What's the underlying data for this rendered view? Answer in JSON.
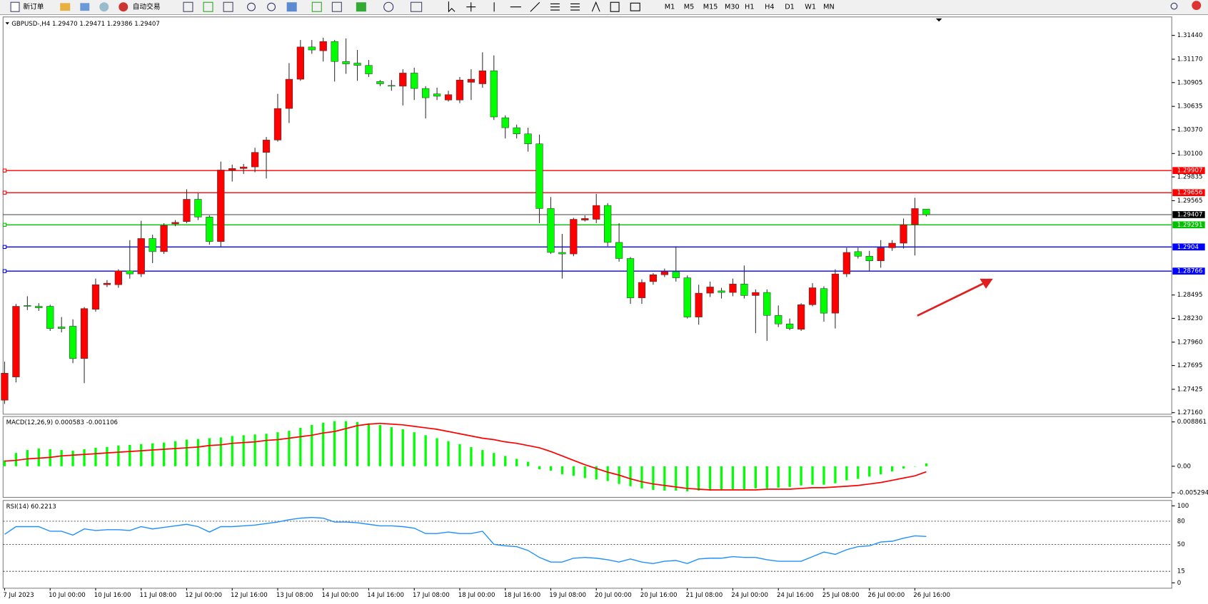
{
  "toolbar": {
    "new_order": "新订单",
    "auto_trading": "自动交易",
    "timeframes": [
      "M1",
      "M5",
      "M15",
      "M30",
      "H1",
      "H4",
      "D1",
      "W1",
      "MN"
    ]
  },
  "chart_data": [
    {
      "type": "candlestick",
      "title": "GBPUSD-,H4 1.29470 1.29471 1.29386 1.29407",
      "x": [
        "7 Jul 2023",
        null,
        null,
        null,
        "10 Jul 00:00",
        null,
        null,
        null,
        "10 Jul 16:00",
        null,
        null,
        null,
        "11 Jul 08:00",
        null,
        null,
        null,
        "12 Jul 00:00",
        null,
        null,
        null,
        "12 Jul 16:00",
        null,
        null,
        null,
        "13 Jul 08:00",
        null,
        null,
        null,
        "14 Jul 00:00",
        null,
        null,
        null,
        "14 Jul 16:00",
        null,
        null,
        null,
        "17 Jul 08:00",
        null,
        null,
        null,
        "18 Jul 00:00",
        null,
        null,
        null,
        "18 Jul 16:00",
        null,
        null,
        null,
        "19 Jul 08:00",
        null,
        null,
        null,
        "20 Jul 00:00",
        null,
        null,
        null,
        "20 Jul 16:00",
        null,
        null,
        null,
        "21 Jul 08:00",
        null,
        null,
        null,
        "24 Jul 00:00",
        null,
        null,
        null,
        "24 Jul 16:00",
        null,
        null,
        null,
        "25 Jul 08:00",
        null,
        null,
        null,
        "26 Jul 00:00",
        null,
        null,
        null,
        "26 Jul 16:00",
        null
      ],
      "candles": [
        [
          1.27302,
          1.27739,
          1.27259,
          1.27608
        ],
        [
          1.27565,
          1.28394,
          1.27503,
          1.28367
        ],
        [
          1.28376,
          1.28481,
          1.28324,
          1.28367
        ],
        [
          1.28367,
          1.28402,
          1.28315,
          1.2835
        ],
        [
          1.28367,
          1.28385,
          1.28088,
          1.28115
        ],
        [
          1.28132,
          1.28245,
          1.28071,
          1.28115
        ],
        [
          1.28141,
          1.28219,
          1.27722,
          1.27774
        ],
        [
          1.27774,
          1.28359,
          1.27495,
          1.28341
        ],
        [
          1.28333,
          1.28681,
          1.28306,
          1.28612
        ],
        [
          1.28612,
          1.28664,
          1.28586,
          1.28629
        ],
        [
          1.28612,
          1.28787,
          1.28577,
          1.28769
        ],
        [
          1.28769,
          1.29118,
          1.28681,
          1.28734
        ],
        [
          1.28734,
          1.29337,
          1.28699,
          1.29136
        ],
        [
          1.29136,
          1.29179,
          1.28857,
          1.28987
        ],
        [
          1.28987,
          1.2931,
          1.28961,
          1.29284
        ],
        [
          1.29302,
          1.29345,
          1.29275,
          1.29319
        ],
        [
          1.29328,
          1.29694,
          1.2931,
          1.29581
        ],
        [
          1.29581,
          1.29651,
          1.29345,
          1.2938
        ],
        [
          1.2938,
          1.29398,
          1.29066,
          1.29101
        ],
        [
          1.29101,
          1.30009,
          1.2904,
          1.29913
        ],
        [
          1.29913,
          1.29974,
          1.29782,
          1.2993
        ],
        [
          1.2993,
          1.29982,
          1.29869,
          1.29948
        ],
        [
          1.29948,
          1.30166,
          1.29887,
          1.30113
        ],
        [
          1.30113,
          1.30288,
          1.29817,
          1.30253
        ],
        [
          1.30253,
          1.30777,
          1.30236,
          1.30611
        ],
        [
          1.30611,
          1.31126,
          1.30446,
          1.30943
        ],
        [
          1.30943,
          1.31388,
          1.30925,
          1.31309
        ],
        [
          1.31309,
          1.31388,
          1.31231,
          1.31275
        ],
        [
          1.31266,
          1.31414,
          1.31144,
          1.31371
        ],
        [
          1.31371,
          1.31388,
          1.30917,
          1.31144
        ],
        [
          1.31144,
          1.31406,
          1.31004,
          1.31117
        ],
        [
          1.31126,
          1.31275,
          1.30925,
          1.311
        ],
        [
          1.311,
          1.31161,
          1.30969,
          1.31004
        ],
        [
          1.30917,
          1.30934,
          1.30864,
          1.30891
        ],
        [
          1.30873,
          1.30934,
          1.30812,
          1.30864
        ],
        [
          1.30864,
          1.31056,
          1.30646,
          1.31013
        ],
        [
          1.31013,
          1.31074,
          1.30707,
          1.30838
        ],
        [
          1.30838,
          1.30864,
          1.30498,
          1.30733
        ],
        [
          1.30777,
          1.30847,
          1.30707,
          1.3075
        ],
        [
          1.30707,
          1.30812,
          1.3069,
          1.30768
        ],
        [
          1.30707,
          1.30969,
          1.30672,
          1.30934
        ],
        [
          1.30908,
          1.31056,
          1.30707,
          1.30943
        ],
        [
          1.30891,
          1.31248,
          1.30847,
          1.31039
        ],
        [
          1.31039,
          1.31213,
          1.30481,
          1.30515
        ],
        [
          1.30506,
          1.30533,
          1.30271,
          1.30393
        ],
        [
          1.30393,
          1.30428,
          1.30271,
          1.30323
        ],
        [
          1.30323,
          1.30393,
          1.30122,
          1.3021
        ],
        [
          1.3021,
          1.30315,
          1.2931,
          1.29476
        ],
        [
          1.29476,
          1.29607,
          1.28961,
          1.28978
        ],
        [
          1.28978,
          1.29188,
          1.28681,
          1.28961
        ],
        [
          1.28961,
          1.29371,
          1.28935,
          1.29354
        ],
        [
          1.29345,
          1.29398,
          1.29328,
          1.29363
        ],
        [
          1.29354,
          1.29642,
          1.2931,
          1.29511
        ],
        [
          1.29511,
          1.29537,
          1.29048,
          1.29092
        ],
        [
          1.29092,
          1.2931,
          1.28874,
          1.28909
        ],
        [
          1.28909,
          1.28926,
          1.28394,
          1.28463
        ],
        [
          1.28463,
          1.28673,
          1.28394,
          1.28638
        ],
        [
          1.28647,
          1.28743,
          1.28612,
          1.28725
        ],
        [
          1.28725,
          1.28795,
          1.28699,
          1.2876
        ],
        [
          1.2876,
          1.29048,
          1.28647,
          1.2869
        ],
        [
          1.2869,
          1.28717,
          1.28228,
          1.28245
        ],
        [
          1.28245,
          1.28612,
          1.28158,
          1.28516
        ],
        [
          1.28516,
          1.28647,
          1.28472,
          1.28586
        ],
        [
          1.28542,
          1.28577,
          1.28455,
          1.28524
        ],
        [
          1.28524,
          1.28681,
          1.28481,
          1.2862
        ],
        [
          1.2862,
          1.2883,
          1.28455,
          1.28489
        ],
        [
          1.28489,
          1.28559,
          1.28062,
          1.28524
        ],
        [
          1.28524,
          1.28559,
          1.27975,
          1.28263
        ],
        [
          1.28263,
          1.28376,
          1.28132,
          1.28167
        ],
        [
          1.28167,
          1.28228,
          1.28097,
          1.28115
        ],
        [
          1.28106,
          1.28402,
          1.28088,
          1.28385
        ],
        [
          1.28385,
          1.28629,
          1.28367,
          1.28577
        ],
        [
          1.28568,
          1.28594,
          1.28193,
          1.28289
        ],
        [
          1.28289,
          1.28787,
          1.28115,
          1.28734
        ],
        [
          1.28734,
          1.29031,
          1.28699,
          1.28978
        ],
        [
          1.28987,
          1.29031,
          1.28909,
          1.28935
        ],
        [
          1.28935,
          1.28996,
          1.2876,
          1.28883
        ],
        [
          1.28883,
          1.29118,
          1.28804,
          1.29031
        ],
        [
          1.29031,
          1.29118,
          1.28996,
          1.29083
        ],
        [
          1.29083,
          1.29363,
          1.29022,
          1.29293
        ],
        [
          1.29293,
          1.29598,
          1.28944,
          1.29476
        ],
        [
          1.2947,
          1.29471,
          1.29386,
          1.29407
        ]
      ],
      "up_color": "#ff0000",
      "down_color": "#00ff00",
      "ylim": [
        1.2716,
        1.3144
      ],
      "yticks": [
        {
          "value": 1.3144,
          "label": "1.31440"
        },
        {
          "value": 1.3117,
          "label": "1.31170"
        },
        1.30905,
        1.30635,
        {
          "value": 1.3037,
          "label": "1.30370"
        },
        {
          "value": 1.301,
          "label": "1.30100"
        },
        1.29835,
        1.29565,
        1.28495,
        {
          "value": 1.2823,
          "label": "1.28230"
        },
        {
          "value": 1.2796,
          "label": "1.27960"
        },
        1.27695,
        1.27425,
        {
          "value": 1.2716,
          "label": "1.27160"
        }
      ],
      "levels": [
        {
          "value": 1.29907,
          "color": "#ff0000"
        },
        {
          "value": 1.29656,
          "color": "#ff0000"
        },
        {
          "value": 1.29291,
          "color": "#00c000"
        },
        {
          "value": 1.2904,
          "color": "#0000ff"
        },
        {
          "value": 1.28766,
          "color": "#0000ff"
        }
      ],
      "current_price": 1.29407,
      "current_color": "#000000"
    },
    {
      "type": "macd",
      "title": "MACD(12,26,9) 0.000583 -0.001106",
      "series": [
        {
          "style": "histogram",
          "color": "#00ff00",
          "values": [
            0.00118,
            0.00266,
            0.00325,
            0.00354,
            0.0034,
            0.00325,
            0.0031,
            0.0034,
            0.00369,
            0.00384,
            0.00414,
            0.00428,
            0.00443,
            0.00458,
            0.00473,
            0.00502,
            0.00532,
            0.00546,
            0.00561,
            0.00576,
            0.00605,
            0.0062,
            0.00635,
            0.0065,
            0.00679,
            0.00709,
            0.00768,
            0.00827,
            0.00871,
            0.00901,
            0.00901,
            0.00886,
            0.00857,
            0.00827,
            0.00783,
            0.00739,
            0.00679,
            0.0062,
            0.00561,
            0.00502,
            0.00443,
            0.00384,
            0.00325,
            0.00266,
            0.00207,
            0.00148,
            0.00089,
            -0.00059,
            -0.00089,
            -0.00162,
            -0.00192,
            -0.00236,
            -0.00266,
            -0.00295,
            -0.00354,
            -0.00399,
            -0.00443,
            -0.00473,
            -0.00487,
            -0.00487,
            -0.00502,
            -0.00487,
            -0.00487,
            -0.00473,
            -0.00458,
            -0.00458,
            -0.00443,
            -0.00443,
            -0.00428,
            -0.00414,
            -0.00384,
            -0.00369,
            -0.00369,
            -0.0034,
            -0.00281,
            -0.00251,
            -0.00207,
            -0.00162,
            -0.00103,
            -0.00044,
            0,
            0.000583
          ]
        },
        {
          "style": "line",
          "color": "#ff0000",
          "values": [
            0.00103,
            0.00118,
            0.00148,
            0.00162,
            0.00177,
            0.00207,
            0.00222,
            0.00236,
            0.00251,
            0.00266,
            0.00281,
            0.00295,
            0.0031,
            0.00325,
            0.0034,
            0.00354,
            0.00369,
            0.00384,
            0.00414,
            0.00428,
            0.00458,
            0.00473,
            0.00487,
            0.00517,
            0.00532,
            0.00561,
            0.00591,
            0.0062,
            0.00665,
            0.00694,
            0.00753,
            0.00812,
            0.00842,
            0.00857,
            0.00842,
            0.00827,
            0.00798,
            0.00768,
            0.00739,
            0.00694,
            0.0065,
            0.00605,
            0.00561,
            0.00532,
            0.00487,
            0.00458,
            0.00414,
            0.00369,
            0.00295,
            0.00207,
            0.00118,
            0.0003,
            -0.00044,
            -0.00118,
            -0.00177,
            -0.00251,
            -0.0031,
            -0.00354,
            -0.00384,
            -0.00414,
            -0.00443,
            -0.00458,
            -0.00473,
            -0.00473,
            -0.00473,
            -0.00473,
            -0.00473,
            -0.00458,
            -0.00458,
            -0.00458,
            -0.00443,
            -0.00428,
            -0.00428,
            -0.00414,
            -0.00399,
            -0.00384,
            -0.00354,
            -0.00325,
            -0.00281,
            -0.00236,
            -0.00192,
            -0.001106
          ]
        }
      ],
      "ylim": [
        -0.005294,
        0.008861
      ],
      "yticks": [
        0.008861,
        {
          "value": 0,
          "label": "0.00"
        },
        -0.005294
      ]
    },
    {
      "type": "rsi",
      "title": "RSI(14) 60.2213",
      "color": "#1e90ff",
      "values": [
        63,
        73,
        73,
        73,
        67,
        67,
        62,
        70,
        68,
        69,
        69,
        68,
        73,
        70,
        72,
        74,
        76,
        73,
        66,
        73,
        73,
        74,
        75,
        77,
        79,
        82,
        84,
        85,
        84,
        79,
        79,
        78,
        76,
        74,
        74,
        73,
        71,
        64,
        64,
        66,
        64,
        64,
        67,
        50,
        48,
        47,
        42,
        33,
        27,
        27,
        32,
        33,
        32,
        30,
        27,
        31,
        27,
        25,
        28,
        29,
        25,
        31,
        32,
        32,
        34,
        33,
        33,
        30,
        28,
        28,
        28,
        34,
        40,
        37,
        43,
        47,
        48,
        53,
        54,
        58,
        61,
        60.2213
      ],
      "ylim": [
        0,
        100
      ],
      "yticks": [
        100,
        80,
        50,
        15,
        0
      ]
    }
  ]
}
